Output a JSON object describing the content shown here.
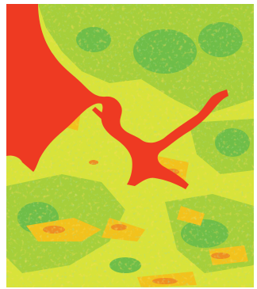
{
  "map": {
    "kind": "classified raster heat map",
    "legend_shown": false,
    "labels_shown": false,
    "classes": [
      {
        "name": "very-low",
        "color": "#66bb44"
      },
      {
        "name": "low",
        "color": "#99cc33"
      },
      {
        "name": "medium",
        "color": "#dde633"
      },
      {
        "name": "high",
        "color": "#f2c81a"
      },
      {
        "name": "very-high",
        "color": "#f08a1e"
      },
      {
        "name": "water",
        "color": "#ee3322"
      }
    ]
  }
}
